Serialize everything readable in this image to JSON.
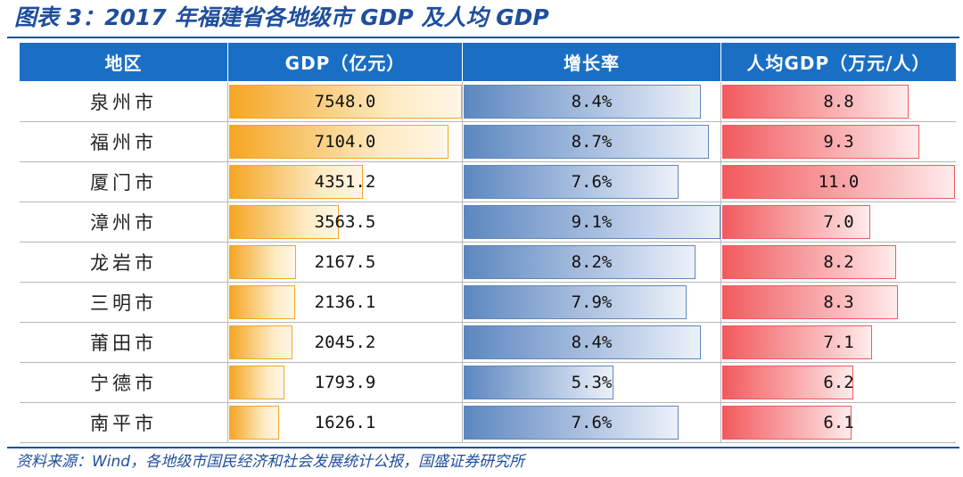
{
  "title": "图表 3：2017 年福建省各地级市 GDP 及人均 GDP",
  "source": "资料来源：Wind，各地级市国民经济和社会发展统计公报，国盛证券研究所",
  "chart_data": {
    "type": "table",
    "title": "图表 3：2017 年福建省各地级市 GDP 及人均 GDP",
    "columns": [
      "地区",
      "GDP（亿元）",
      "增长率",
      "人均GDP（万元/人）"
    ],
    "rows": [
      {
        "region": "泉州市",
        "gdp": "7548.0",
        "growth": "8.4%",
        "per_capita": "8.8"
      },
      {
        "region": "福州市",
        "gdp": "7104.0",
        "growth": "8.7%",
        "per_capita": "9.3"
      },
      {
        "region": "厦门市",
        "gdp": "4351.2",
        "growth": "7.6%",
        "per_capita": "11.0"
      },
      {
        "region": "漳州市",
        "gdp": "3563.5",
        "growth": "9.1%",
        "per_capita": "7.0"
      },
      {
        "region": "龙岩市",
        "gdp": "2167.5",
        "growth": "8.2%",
        "per_capita": "8.2"
      },
      {
        "region": "三明市",
        "gdp": "2136.1",
        "growth": "7.9%",
        "per_capita": "8.3"
      },
      {
        "region": "莆田市",
        "gdp": "2045.2",
        "growth": "8.4%",
        "per_capita": "7.1"
      },
      {
        "region": "宁德市",
        "gdp": "1793.9",
        "growth": "5.3%",
        "per_capita": "6.2"
      },
      {
        "region": "南平市",
        "gdp": "1626.1",
        "growth": "7.6%",
        "per_capita": "6.1"
      }
    ]
  },
  "colors": {
    "header_bg": "#1a6fc4",
    "gdp_bar": "#f5a623",
    "growth_bar": "#5d87c0",
    "per_capita_bar": "#f25a5e",
    "title_text": "#1f4e9c"
  }
}
